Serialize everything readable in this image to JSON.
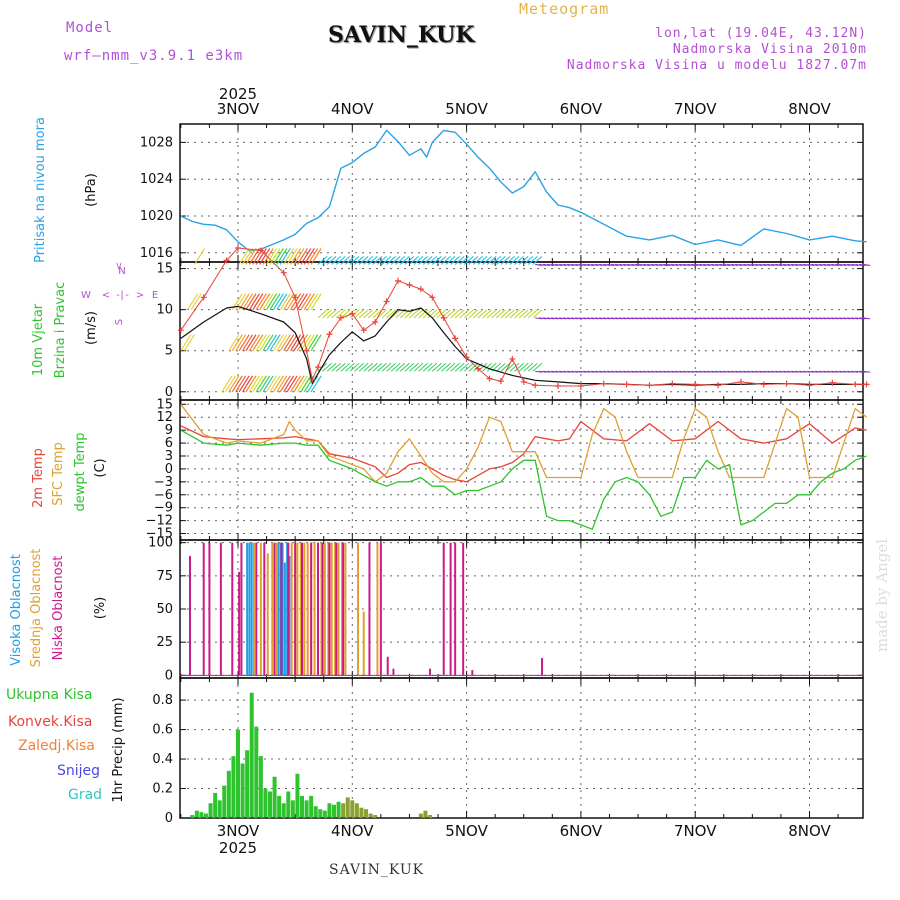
{
  "header": {
    "model_label": "Model",
    "model_name": "wrf–nmm_v3.9.1  e3km",
    "station": "SAVIN_KUK",
    "subtitle": "Meteogram",
    "coords": "lon,lat (19.04E, 43.12N)",
    "elevation": "Nadmorska Visina 2010m",
    "model_elevation": "Nadmorska Visina u modelu 1827.07m",
    "footer_station": "SAVIN_KUK",
    "credit": "made by Angel"
  },
  "colors": {
    "pressure": "#29a3e6",
    "temp2m": "#e8443a",
    "sfc": "#e0a030",
    "dew": "#2ec42e",
    "high": "#1e9ee8",
    "mid": "#e0a030",
    "low": "#cc1a88",
    "total": "#2ec42e",
    "conv": "#e8443a",
    "frozen": "#f0803a",
    "snow": "#4a4ae0",
    "graupel": "#30c8c0",
    "purple": "#b44fd6"
  },
  "chart_data": [
    {
      "id": "pressure",
      "type": "line",
      "title": "Pritisak na nivou mora",
      "ylabel": "(hPa)",
      "ylim": [
        1015,
        1030
      ],
      "yticks": [
        1016,
        1020,
        1024,
        1028
      ],
      "x_days": [
        "3NOV",
        "4NOV",
        "5NOV",
        "6NOV",
        "7NOV",
        "8NOV"
      ],
      "year": "2025",
      "xlim": [
        -0.5,
        5.5
      ],
      "series": [
        {
          "name": "Pritisak",
          "x": [
            -0.5,
            -0.4,
            -0.3,
            -0.2,
            -0.1,
            0.0,
            0.1,
            0.2,
            0.3,
            0.4,
            0.5,
            0.6,
            0.7,
            0.75,
            0.8,
            0.9,
            1.0,
            1.1,
            1.2,
            1.3,
            1.4,
            1.5,
            1.6,
            1.65,
            1.7,
            1.8,
            1.9,
            2.0,
            2.1,
            2.2,
            2.3,
            2.4,
            2.5,
            2.6,
            2.7,
            2.8,
            2.9,
            3.0,
            3.2,
            3.4,
            3.6,
            3.8,
            4.0,
            4.2,
            4.4,
            4.6,
            4.8,
            5.0,
            5.2,
            5.4,
            5.5
          ],
          "values": [
            1020.0,
            1019.4,
            1019.1,
            1019.0,
            1018.5,
            1017.2,
            1016.2,
            1016.4,
            1016.9,
            1017.4,
            1018.0,
            1019.2,
            1019.8,
            1020.4,
            1021.0,
            1025.2,
            1025.8,
            1026.8,
            1027.5,
            1029.3,
            1028.1,
            1026.6,
            1027.3,
            1026.4,
            1028.0,
            1029.3,
            1029.1,
            1027.8,
            1026.4,
            1025.2,
            1023.7,
            1022.5,
            1023.2,
            1024.8,
            1022.6,
            1021.2,
            1020.9,
            1020.4,
            1019.1,
            1017.8,
            1017.4,
            1017.9,
            1016.9,
            1017.4,
            1016.8,
            1018.6,
            1018.1,
            1017.4,
            1017.8,
            1017.3,
            1017.2
          ]
        }
      ]
    },
    {
      "id": "wind",
      "type": "line",
      "title": "10m Vjetar",
      "title2": "Brzina i Pravac",
      "ylabel": "(m/s)",
      "ylim": [
        -1,
        15.8
      ],
      "yticks": [
        0,
        5,
        10,
        15
      ],
      "compass": [
        "N",
        "W",
        "E",
        "S"
      ],
      "xlim": [
        -0.5,
        5.5
      ],
      "series": [
        {
          "name": "Brzina",
          "x": [
            -0.5,
            -0.3,
            -0.1,
            0.0,
            0.2,
            0.4,
            0.5,
            0.6,
            0.65,
            0.7,
            0.8,
            0.9,
            1.0,
            1.1,
            1.2,
            1.3,
            1.4,
            1.5,
            1.6,
            1.7,
            1.8,
            1.9,
            2.0,
            2.2,
            2.4,
            2.6,
            2.8,
            3.0,
            3.2,
            3.4,
            3.6,
            3.8,
            4.0,
            4.2,
            4.4,
            4.6,
            4.8,
            5.0,
            5.2,
            5.4,
            5.5
          ],
          "values": [
            6.5,
            8.5,
            10.2,
            10.4,
            9.5,
            8.5,
            7.2,
            4.0,
            1.0,
            2.2,
            4.5,
            6.0,
            7.3,
            6.2,
            6.8,
            8.5,
            10.0,
            9.8,
            10.2,
            9.0,
            7.2,
            5.5,
            4.0,
            2.8,
            2.0,
            1.4,
            1.2,
            1.0,
            1.0,
            0.9,
            0.8,
            0.9,
            0.8,
            0.9,
            0.9,
            1.0,
            1.0,
            0.9,
            0.9,
            0.9,
            0.9
          ]
        },
        {
          "name": "Udari",
          "x": [
            -0.5,
            -0.3,
            -0.1,
            0.0,
            0.2,
            0.4,
            0.5,
            0.6,
            0.65,
            0.7,
            0.8,
            0.9,
            1.0,
            1.1,
            1.2,
            1.3,
            1.4,
            1.5,
            1.6,
            1.7,
            1.8,
            1.9,
            2.0,
            2.1,
            2.2,
            2.3,
            2.4,
            2.5,
            2.6,
            2.8,
            3.0,
            3.2,
            3.4,
            3.6,
            3.8,
            4.0,
            4.2,
            4.4,
            4.6,
            4.8,
            5.0,
            5.2,
            5.4,
            5.5
          ],
          "values": [
            7.5,
            11.5,
            16.0,
            17.5,
            17.2,
            14.5,
            11.5,
            5.0,
            1.5,
            3.0,
            7.0,
            9.0,
            9.5,
            7.5,
            8.5,
            11.0,
            13.5,
            13.0,
            12.5,
            11.5,
            9.0,
            6.5,
            4.2,
            2.8,
            1.6,
            1.3,
            4.0,
            1.2,
            0.8,
            0.7,
            0.7,
            1.0,
            0.9,
            0.8,
            1.0,
            0.9,
            0.8,
            1.2,
            0.9,
            1.0,
            0.8,
            1.1,
            0.9,
            0.9
          ]
        }
      ]
    },
    {
      "id": "temperature",
      "type": "line",
      "title": "2m Temp",
      "title2": "SFC Temp",
      "title3": "dewpt Temp",
      "ylabel": "(C)",
      "ylim": [
        -16.5,
        16
      ],
      "yticks": [
        -15,
        -12,
        -9,
        -6,
        -3,
        0,
        3,
        6,
        9,
        12,
        15
      ],
      "xlim": [
        -0.5,
        5.5
      ],
      "series": [
        {
          "name": "2m Temp",
          "x": [
            -0.5,
            -0.3,
            -0.1,
            0.0,
            0.2,
            0.4,
            0.5,
            0.6,
            0.7,
            0.8,
            0.9,
            1.0,
            1.1,
            1.2,
            1.3,
            1.4,
            1.5,
            1.6,
            1.7,
            1.8,
            1.9,
            2.0,
            2.1,
            2.2,
            2.3,
            2.4,
            2.5,
            2.6,
            2.7,
            2.8,
            2.9,
            3.0,
            3.2,
            3.4,
            3.6,
            3.8,
            4.0,
            4.2,
            4.4,
            4.6,
            4.8,
            5.0,
            5.2,
            5.4,
            5.5
          ],
          "values": [
            10,
            7.5,
            7.0,
            6.8,
            7.0,
            7.2,
            7.5,
            7.0,
            6.5,
            3.5,
            3.0,
            2.5,
            1.5,
            0.5,
            -2.0,
            -1.0,
            1.0,
            1.5,
            0.0,
            -1.5,
            -2.5,
            -3.0,
            -1.5,
            0.0,
            0.5,
            1.5,
            3.5,
            7.5,
            7.0,
            6.5,
            7.0,
            11.0,
            7.0,
            6.5,
            10.5,
            6.5,
            7.0,
            11.0,
            7.0,
            6.0,
            7.0,
            10.5,
            6.0,
            9.5,
            9.0
          ]
        },
        {
          "name": "SFC Temp",
          "x": [
            -0.5,
            -0.3,
            -0.1,
            0.0,
            0.2,
            0.4,
            0.45,
            0.5,
            0.6,
            0.7,
            0.8,
            0.9,
            1.0,
            1.1,
            1.2,
            1.3,
            1.4,
            1.5,
            1.6,
            1.7,
            1.8,
            1.9,
            2.0,
            2.1,
            2.2,
            2.3,
            2.4,
            2.5,
            2.6,
            2.7,
            2.8,
            2.9,
            3.0,
            3.1,
            3.2,
            3.3,
            3.4,
            3.5,
            3.6,
            3.7,
            3.8,
            3.9,
            4.0,
            4.1,
            4.2,
            4.3,
            4.4,
            4.5,
            4.6,
            4.7,
            4.8,
            4.9,
            5.0,
            5.1,
            5.2,
            5.3,
            5.4,
            5.5
          ],
          "values": [
            15,
            8,
            6,
            6.5,
            6,
            8,
            11,
            9,
            6.5,
            6.5,
            3,
            2,
            1,
            0,
            -3,
            -1,
            4,
            7,
            3,
            -1,
            -3,
            -3,
            0,
            5,
            12,
            11,
            4,
            4,
            4,
            -2,
            -2,
            -2,
            -2,
            8,
            14,
            12,
            4,
            -2,
            -2,
            -2,
            -2,
            7,
            14,
            12,
            4,
            -2,
            -2,
            -2,
            -2,
            6,
            14,
            12,
            -2,
            -2,
            -2,
            6,
            14,
            12
          ]
        },
        {
          "name": "dewpt Temp",
          "x": [
            -0.5,
            -0.3,
            -0.1,
            0.0,
            0.2,
            0.4,
            0.5,
            0.6,
            0.7,
            0.8,
            0.9,
            1.0,
            1.1,
            1.2,
            1.3,
            1.4,
            1.5,
            1.6,
            1.7,
            1.8,
            1.9,
            2.0,
            2.1,
            2.2,
            2.3,
            2.4,
            2.5,
            2.6,
            2.7,
            2.8,
            2.9,
            3.0,
            3.1,
            3.2,
            3.3,
            3.4,
            3.5,
            3.6,
            3.7,
            3.8,
            3.9,
            4.0,
            4.1,
            4.2,
            4.3,
            4.4,
            4.5,
            4.6,
            4.7,
            4.8,
            4.9,
            5.0,
            5.1,
            5.2,
            5.3,
            5.4,
            5.5
          ],
          "values": [
            9,
            6,
            5.5,
            6,
            5.5,
            6,
            6,
            5.5,
            5.5,
            2,
            1,
            0,
            -1.5,
            -3,
            -4,
            -3,
            -3,
            -2,
            -4,
            -4,
            -6,
            -5,
            -5,
            -4,
            -3,
            0,
            2,
            2,
            -11,
            -12,
            -12,
            -13,
            -14,
            -7,
            -3,
            -2,
            -3,
            -6,
            -11,
            -10,
            -2,
            -2,
            2,
            0,
            1,
            -13,
            -12,
            -10,
            -8,
            -8,
            -6,
            -6,
            -3,
            -1,
            0,
            2,
            3
          ]
        }
      ]
    },
    {
      "id": "cloud",
      "type": "bar",
      "title": "Visoka Oblacnost",
      "title2": "Srednja Oblacnost",
      "title3": "Niska Oblacnost",
      "ylabel": "(%)",
      "ylim": [
        -2,
        102
      ],
      "yticks": [
        0,
        25,
        50,
        75,
        100
      ],
      "xlim": [
        -0.5,
        5.5
      ],
      "series": [
        {
          "name": "Visoka",
          "x": [
            0.08,
            0.1,
            0.12,
            0.35,
            0.37,
            0.39,
            0.41,
            0.43,
            0.45
          ],
          "values": [
            100,
            100,
            100,
            100,
            100,
            100,
            85,
            100,
            90
          ]
        },
        {
          "name": "Srednja",
          "x": [
            0.14,
            0.2,
            0.26,
            0.3,
            0.34,
            0.47,
            0.5,
            0.52,
            0.55,
            0.58,
            0.61,
            0.64,
            0.67,
            0.7,
            0.73,
            0.76,
            0.79,
            0.82,
            0.85,
            0.88,
            0.91,
            0.94,
            1.05,
            1.1,
            1.22
          ],
          "values": [
            100,
            100,
            92,
            100,
            100,
            100,
            100,
            100,
            100,
            100,
            100,
            100,
            100,
            100,
            100,
            100,
            100,
            100,
            100,
            100,
            100,
            100,
            100,
            48,
            100
          ]
        },
        {
          "name": "Niska",
          "x": [
            -0.42,
            -0.3,
            -0.25,
            -0.15,
            -0.05,
            0.01,
            0.03,
            0.16,
            0.23,
            0.32,
            0.38,
            0.44,
            0.5,
            0.56,
            0.64,
            0.7,
            0.74,
            0.8,
            0.86,
            0.92,
            1.15,
            1.25,
            1.31,
            1.36,
            1.68,
            1.8,
            1.86,
            1.9,
            1.97,
            2.05,
            2.66
          ],
          "values": [
            90,
            100,
            100,
            100,
            100,
            78,
            100,
            100,
            100,
            100,
            100,
            100,
            100,
            100,
            100,
            100,
            100,
            100,
            100,
            100,
            100,
            100,
            14,
            5,
            5,
            100,
            100,
            100,
            100,
            4,
            13
          ]
        }
      ]
    },
    {
      "id": "precip",
      "type": "bar",
      "title": "Ukupna Kisa",
      "title2": "Konvek.Kisa",
      "title3": "Zaledj.Kisa",
      "title4": "Snijeg",
      "title5": "Grad",
      "ylabel": "1hr Precip (mm)",
      "ylim": [
        0,
        0.95
      ],
      "yticks": [
        0,
        0.2,
        0.4,
        0.6,
        0.8
      ],
      "xlim": [
        -0.5,
        5.5
      ],
      "xlabel_year": "2025",
      "series": [
        {
          "name": "Ukupna Kisa",
          "x": [
            -0.4,
            -0.36,
            -0.32,
            -0.28,
            -0.24,
            -0.2,
            -0.16,
            -0.12,
            -0.08,
            -0.04,
            0.0,
            0.04,
            0.08,
            0.12,
            0.16,
            0.2,
            0.24,
            0.28,
            0.32,
            0.36,
            0.4,
            0.44,
            0.48,
            0.52,
            0.56,
            0.6,
            0.64,
            0.68,
            0.72,
            0.76,
            0.8,
            0.84,
            0.88,
            0.92,
            0.96,
            1.0,
            1.04,
            1.08,
            1.12,
            1.16,
            1.2,
            1.6,
            1.64,
            1.68
          ],
          "values": [
            0.02,
            0.05,
            0.04,
            0.03,
            0.1,
            0.17,
            0.12,
            0.22,
            0.32,
            0.42,
            0.6,
            0.37,
            0.46,
            0.85,
            0.62,
            0.42,
            0.2,
            0.18,
            0.28,
            0.15,
            0.1,
            0.18,
            0.12,
            0.3,
            0.15,
            0.12,
            0.15,
            0.08,
            0.06,
            0.05,
            0.1,
            0.09,
            0.11,
            0.1,
            0.14,
            0.12,
            0.1,
            0.07,
            0.06,
            0.03,
            0.02,
            0.03,
            0.05,
            0.02
          ]
        }
      ]
    }
  ]
}
